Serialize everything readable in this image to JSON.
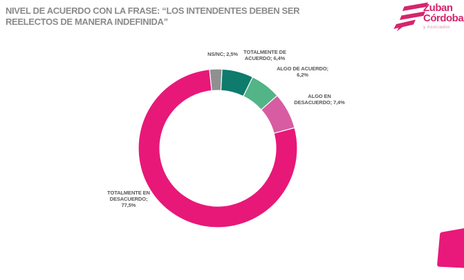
{
  "header": {
    "title_line1": "NIVEL DE ACUERDO CON LA FRASE: “LOS INTENDENTES DEBEN SER",
    "title_line2": "REELECTOS DE MANERA INDEFINIDA”",
    "title_color": "#8a8a8a"
  },
  "logo": {
    "line1": "Zuban",
    "line2": "Córdoba",
    "line3": "y Asociados",
    "brand_color": "#d6246e",
    "sub_color": "#e08cb2"
  },
  "chart_data": {
    "type": "pie",
    "subtype": "donut",
    "title": "NIVEL DE ACUERDO CON LA FRASE: “LOS INTENDENTES DEBEN SER REELECTOS DE MANERA INDEFINIDA”",
    "categories": [
      "TOTALMENTE DE ACUERDO",
      "ALGO DE ACUERDO",
      "ALGO EN DESACUERDO",
      "TOTALMENTE EN DESACUERDO",
      "NS/NC"
    ],
    "values": [
      6.4,
      6.2,
      7.4,
      77.5,
      2.5
    ],
    "colors": [
      "#0e7b6d",
      "#53b487",
      "#d75ca2",
      "#e81878",
      "#909090"
    ],
    "start_angle_deg": 3,
    "direction": "clockwise",
    "hole_ratio": 0.73,
    "legend": "none",
    "data_labels": "outside",
    "label_format": "category; value%"
  },
  "labels": {
    "nsnc": {
      "lines": [
        "NS/NC; 2,5%"
      ]
    },
    "tot_acuerdo": {
      "lines": [
        "TOTALMENTE DE",
        "ACUERDO; 6,4%"
      ]
    },
    "algo_acuerdo": {
      "lines": [
        "ALGO DE ACUERDO;",
        "6,2%"
      ]
    },
    "algo_desacuerdo": {
      "lines": [
        "ALGO EN",
        "DESACUERDO; 7,4%"
      ]
    },
    "tot_desacuerdo": {
      "lines": [
        "TOTALMENTE EN",
        "DESACUERDO;",
        "77,5%"
      ]
    }
  },
  "footer": {
    "accent_color": "#e8197b"
  }
}
